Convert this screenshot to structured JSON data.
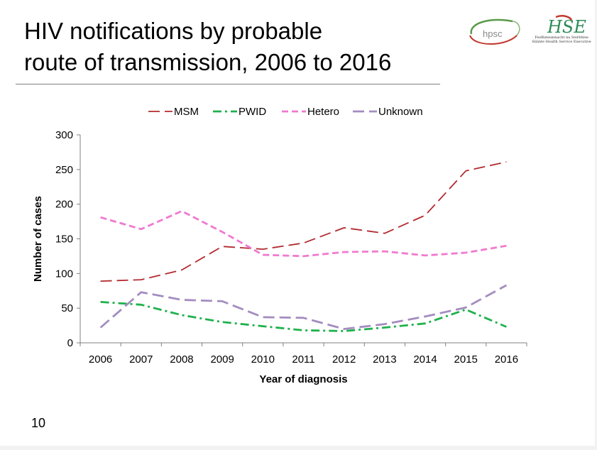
{
  "slide": {
    "title_line1": "HIV notifications by probable",
    "title_line2": "route of transmission, 2006 to 2016",
    "page_number": "10"
  },
  "logos": {
    "hpsc_text": "hpsc",
    "hse_text": "Feidhmeannacht na Seirbhíse Sláinte Health Service Executive"
  },
  "chart_data": {
    "type": "line",
    "title": "",
    "xlabel": "Year of diagnosis",
    "ylabel": "Number of cases",
    "categories": [
      "2006",
      "2007",
      "2008",
      "2009",
      "2010",
      "2011",
      "2012",
      "2013",
      "2014",
      "2015",
      "2016"
    ],
    "ylim": [
      0,
      300
    ],
    "yticks": [
      0,
      50,
      100,
      150,
      200,
      250,
      300
    ],
    "grid": false,
    "legend_position": "top",
    "series": [
      {
        "name": "MSM",
        "color": "#b22a2f",
        "dash": "long-dash",
        "values": [
          89,
          91,
          105,
          139,
          135,
          144,
          166,
          158,
          184,
          248,
          261
        ]
      },
      {
        "name": "PWID",
        "color": "#1fb14c",
        "dash": "dash-dot",
        "values": [
          59,
          55,
          40,
          30,
          24,
          18,
          17,
          22,
          28,
          48,
          23
        ]
      },
      {
        "name": "Hetero",
        "color": "#f07ad0",
        "dash": "dash",
        "values": [
          181,
          164,
          190,
          160,
          127,
          125,
          131,
          132,
          126,
          130,
          140
        ]
      },
      {
        "name": "Unknown",
        "color": "#a48cc0",
        "dash": "long-dash",
        "values": [
          22,
          73,
          62,
          60,
          37,
          36,
          20,
          27,
          38,
          51,
          83
        ]
      }
    ]
  }
}
